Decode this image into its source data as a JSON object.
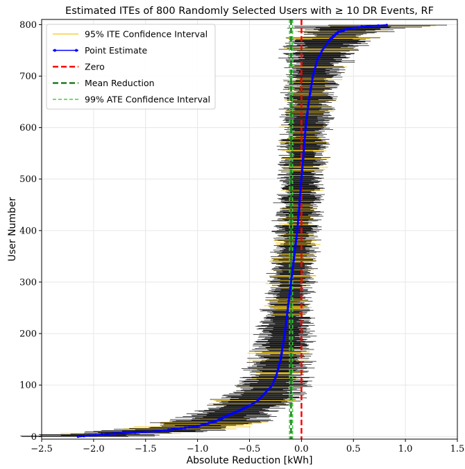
{
  "chart_data": {
    "type": "scatter",
    "title": "Estimated ITEs of 800 Randomly Selected Users with ≥ 10 DR Events, RF",
    "xlabel": "Absolute Reduction [kWh]",
    "ylabel": "User Number",
    "xlim": [
      -2.5,
      1.5
    ],
    "ylim": [
      -5,
      810
    ],
    "xticks": [
      -2.5,
      -2.0,
      -1.5,
      -1.0,
      -0.5,
      0.0,
      0.5,
      1.0,
      1.5
    ],
    "xtick_labels": [
      "−2.5",
      "−2.0",
      "−1.5",
      "−1.0",
      "−0.5",
      "0.0",
      "0.5",
      "1.0",
      "1.5"
    ],
    "yticks": [
      0,
      100,
      200,
      300,
      400,
      500,
      600,
      700,
      800
    ],
    "ytick_labels": [
      "0",
      "100",
      "200",
      "300",
      "400",
      "500",
      "600",
      "700",
      "800"
    ],
    "grid": true,
    "legend_position": "top-left",
    "legend": [
      {
        "label": "95% ITE Confidence Interval",
        "style": "thin-line",
        "color": "#f2c514"
      },
      {
        "label": "Point Estimate",
        "style": "line-with-markers",
        "color": "#0000ff"
      },
      {
        "label": "Zero",
        "style": "dashed",
        "color": "#ff0000"
      },
      {
        "label": "Mean Reduction",
        "style": "dashed",
        "color": "#1f7a1f"
      },
      {
        "label": "99% ATE Confidence Interval",
        "style": "dashed",
        "color": "#3ecf3e"
      }
    ],
    "n_users": 800,
    "point_estimate_curve": {
      "user": [
        0,
        3,
        6,
        10,
        15,
        20,
        30,
        40,
        50,
        60,
        70,
        80,
        100,
        120,
        150,
        200,
        250,
        300,
        350,
        400,
        450,
        500,
        550,
        600,
        650,
        700,
        730,
        750,
        770,
        785,
        792,
        796,
        799
      ],
      "estimate": [
        -2.15,
        -1.98,
        -1.8,
        -1.4,
        -1.2,
        -1.0,
        -0.82,
        -0.72,
        -0.6,
        -0.5,
        -0.42,
        -0.37,
        -0.28,
        -0.24,
        -0.2,
        -0.16,
        -0.13,
        -0.1,
        -0.07,
        -0.04,
        -0.02,
        0.0,
        0.02,
        0.04,
        0.07,
        0.11,
        0.15,
        0.2,
        0.27,
        0.35,
        0.45,
        0.58,
        0.82
      ]
    },
    "ci_half_width_curve": {
      "user": [
        0,
        20,
        50,
        100,
        200,
        300,
        400,
        500,
        600,
        700,
        750,
        790,
        799
      ],
      "half_width": [
        0.45,
        0.4,
        0.32,
        0.25,
        0.19,
        0.16,
        0.16,
        0.16,
        0.17,
        0.2,
        0.26,
        0.36,
        0.48
      ]
    },
    "zero_line": 0.0,
    "mean_reduction": -0.1,
    "ate_ci_99": [
      -0.115,
      -0.085
    ],
    "line_colors": {
      "ite_ci": "#f2c514",
      "ite_bar": "#111111",
      "point_estimate": "#0000ff",
      "zero": "#ff0000",
      "mean_reduction": "#1f7a1f",
      "ate_ci": "#3ecf3e"
    }
  }
}
